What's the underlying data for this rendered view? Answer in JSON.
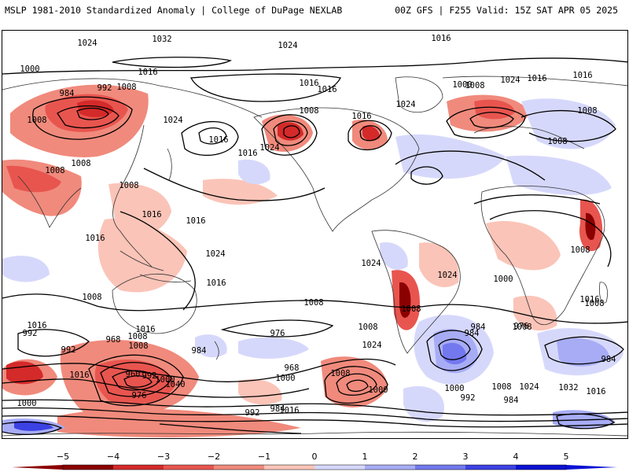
{
  "header": {
    "title_left": "MSLP 1981-2010 Standardized Anomaly | College of DuPage NEXLAB",
    "title_right": "00Z GFS | F255 Valid: 15Z SAT APR 05 2025"
  },
  "colors": {
    "neg5": "#8b0000",
    "neg4": "#d42a2a",
    "neg3": "#e8554f",
    "neg2": "#f08a7c",
    "neg1": "#fbc4b8",
    "zero": "#ffffff",
    "pos1": "#d6d8fb",
    "pos2": "#a7acf5",
    "pos3": "#7378ee",
    "pos4": "#3c41e3",
    "pos5": "#0b12d4",
    "contour": "#000000",
    "coast": "#333333"
  },
  "colorbar": {
    "ticks": [
      "−5",
      "−4",
      "−3",
      "−2",
      "−1",
      "0",
      "1",
      "2",
      "3",
      "4",
      "5"
    ],
    "units": "standardized anomaly"
  },
  "pressure_labels": [
    {
      "text": "1024",
      "kind": "high"
    },
    {
      "text": "1032",
      "kind": "high"
    },
    {
      "text": "1024",
      "kind": "high"
    },
    {
      "text": "1024",
      "kind": "high"
    },
    {
      "text": "1016",
      "kind": "high"
    },
    {
      "text": "1000",
      "kind": "low"
    },
    {
      "text": "984",
      "kind": "low"
    },
    {
      "text": "992",
      "kind": "low"
    },
    {
      "text": "1008",
      "kind": "low"
    },
    {
      "text": "1016",
      "kind": "mid"
    },
    {
      "text": "1008",
      "kind": "low"
    },
    {
      "text": "1024",
      "kind": "high"
    },
    {
      "text": "1016",
      "kind": "mid"
    },
    {
      "text": "1016",
      "kind": "mid"
    },
    {
      "text": "1008",
      "kind": "low"
    },
    {
      "text": "1016",
      "kind": "mid"
    },
    {
      "text": "1024",
      "kind": "high"
    },
    {
      "text": "1016",
      "kind": "mid"
    },
    {
      "text": "1024",
      "kind": "high"
    },
    {
      "text": "1000",
      "kind": "low"
    },
    {
      "text": "1016",
      "kind": "mid"
    },
    {
      "text": "1008",
      "kind": "low"
    },
    {
      "text": "1024",
      "kind": "high"
    },
    {
      "text": "1016",
      "kind": "mid"
    },
    {
      "text": "1016",
      "kind": "mid"
    },
    {
      "text": "1008",
      "kind": "low"
    },
    {
      "text": "1008",
      "kind": "low"
    },
    {
      "text": "1008",
      "kind": "low"
    },
    {
      "text": "1008",
      "kind": "low"
    },
    {
      "text": "1008",
      "kind": "low"
    },
    {
      "text": "1016",
      "kind": "mid"
    },
    {
      "text": "1016",
      "kind": "mid"
    },
    {
      "text": "1016",
      "kind": "mid"
    },
    {
      "text": "1024",
      "kind": "high"
    },
    {
      "text": "1016",
      "kind": "mid"
    },
    {
      "text": "1008",
      "kind": "low"
    },
    {
      "text": "1016",
      "kind": "mid"
    },
    {
      "text": "1008",
      "kind": "low"
    },
    {
      "text": "1024",
      "kind": "high"
    },
    {
      "text": "1008",
      "kind": "low"
    },
    {
      "text": "1008",
      "kind": "low"
    },
    {
      "text": "1024",
      "kind": "high"
    },
    {
      "text": "1000",
      "kind": "low"
    },
    {
      "text": "976",
      "kind": "low"
    },
    {
      "text": "984",
      "kind": "low"
    },
    {
      "text": "992",
      "kind": "low"
    },
    {
      "text": "968",
      "kind": "low"
    },
    {
      "text": "1008",
      "kind": "low"
    },
    {
      "text": "1016",
      "kind": "mid"
    },
    {
      "text": "1008",
      "kind": "low"
    },
    {
      "text": "992",
      "kind": "low"
    },
    {
      "text": "984",
      "kind": "low"
    },
    {
      "text": "976",
      "kind": "low"
    },
    {
      "text": "968",
      "kind": "low"
    },
    {
      "text": "1000",
      "kind": "low"
    },
    {
      "text": "1024",
      "kind": "high"
    },
    {
      "text": "1008",
      "kind": "low"
    },
    {
      "text": "984",
      "kind": "low"
    },
    {
      "text": "1016",
      "kind": "mid"
    },
    {
      "text": "1008",
      "kind": "low"
    },
    {
      "text": "984",
      "kind": "low"
    },
    {
      "text": "1016",
      "kind": "mid"
    },
    {
      "text": "960",
      "kind": "low"
    },
    {
      "text": "992",
      "kind": "low"
    },
    {
      "text": "1000",
      "kind": "low"
    },
    {
      "text": "1040",
      "kind": "high"
    },
    {
      "text": "1000",
      "kind": "low"
    },
    {
      "text": "976",
      "kind": "low"
    },
    {
      "text": "984",
      "kind": "low"
    },
    {
      "text": "1016",
      "kind": "mid"
    },
    {
      "text": "992",
      "kind": "low"
    },
    {
      "text": "1000",
      "kind": "low"
    },
    {
      "text": "1000",
      "kind": "low"
    },
    {
      "text": "992",
      "kind": "low"
    },
    {
      "text": "1008",
      "kind": "low"
    },
    {
      "text": "1024",
      "kind": "high"
    },
    {
      "text": "1032",
      "kind": "high"
    },
    {
      "text": "1016",
      "kind": "mid"
    },
    {
      "text": "984",
      "kind": "low"
    },
    {
      "text": "1008",
      "kind": "low"
    },
    {
      "text": "1008",
      "kind": "low"
    }
  ]
}
